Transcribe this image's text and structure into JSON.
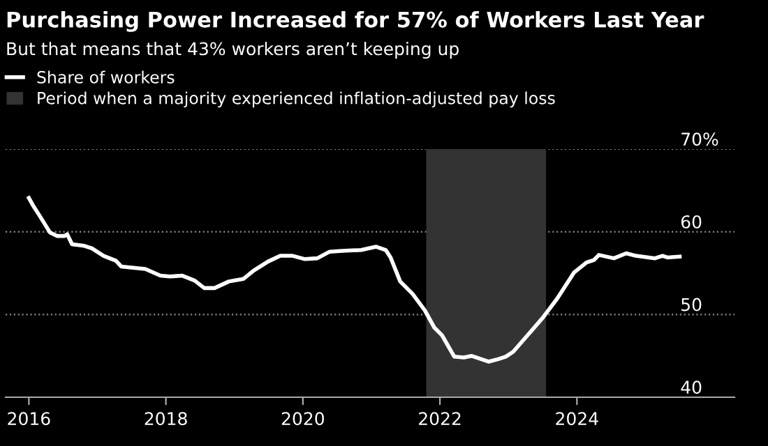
{
  "chart_data": {
    "type": "line",
    "title": "Purchasing Power Increased for 57% of Workers Last Year",
    "subtitle": "But that means that 43% workers aren’t keeping up",
    "x": [
      2016.0,
      2016.06,
      2016.16,
      2016.31,
      2016.41,
      2016.52,
      2016.56,
      2016.63,
      2016.81,
      2016.92,
      2017.09,
      2017.27,
      2017.35,
      2017.7,
      2017.92,
      2018.06,
      2018.24,
      2018.42,
      2018.56,
      2018.71,
      2018.92,
      2019.13,
      2019.28,
      2019.49,
      2019.67,
      2019.85,
      2020.03,
      2020.21,
      2020.39,
      2020.57,
      2020.85,
      2021.07,
      2021.21,
      2021.28,
      2021.42,
      2021.6,
      2021.78,
      2021.92,
      2022.03,
      2022.21,
      2022.35,
      2022.46,
      2022.71,
      2022.85,
      2022.96,
      2023.07,
      2023.28,
      2023.5,
      2023.71,
      2023.96,
      2024.14,
      2024.25,
      2024.32,
      2024.54,
      2024.72,
      2024.86,
      2025.14,
      2025.25,
      2025.32,
      2025.5
    ],
    "series": [
      {
        "name": "Share of workers",
        "color": "#ffffff",
        "values": [
          64.1,
          63.2,
          61.9,
          59.9,
          59.5,
          59.5,
          59.7,
          58.5,
          58.3,
          58.0,
          57.1,
          56.5,
          55.8,
          55.5,
          54.7,
          54.6,
          54.7,
          54.1,
          53.2,
          53.2,
          54.0,
          54.3,
          55.3,
          56.4,
          57.1,
          57.1,
          56.7,
          56.8,
          57.6,
          57.7,
          57.8,
          58.2,
          57.8,
          56.9,
          54.0,
          52.5,
          50.5,
          48.4,
          47.5,
          44.9,
          44.8,
          45.0,
          44.3,
          44.6,
          44.9,
          45.5,
          47.5,
          49.6,
          51.9,
          55.1,
          56.3,
          56.6,
          57.2,
          56.8,
          57.4,
          57.1,
          56.8,
          57.1,
          56.9,
          57.0
        ]
      }
    ],
    "bands": [
      {
        "axis": "x",
        "from": 2021.8,
        "to": 2023.55,
        "label": "Period when a majority experienced inflation-adjusted pay loss",
        "color": "#333333"
      }
    ],
    "xlim": [
      2015.66,
      2026.3
    ],
    "xticks": [
      2016,
      2018,
      2020,
      2022,
      2024
    ],
    "ylim": [
      40,
      70
    ],
    "yticks": [
      40,
      50,
      60,
      {
        "value": 70,
        "label": "70%"
      }
    ],
    "grid": "y",
    "legend": "top left",
    "line_style": "solid",
    "marker": "none"
  }
}
